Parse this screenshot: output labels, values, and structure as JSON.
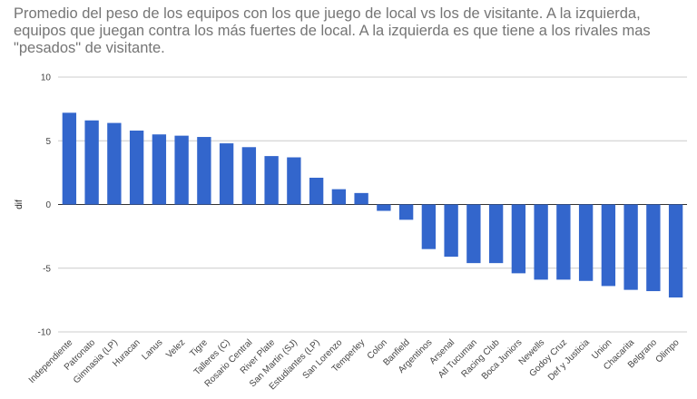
{
  "chart_data": {
    "type": "bar",
    "title": "Promedio del peso de los equipos con los que juego de local vs los de visitante. A la izquierda,\nequipos que juegan contra los más fuertes de local. A la izquierda es que tiene a los rivales mas\n\"pesados\" de visitante.",
    "xlabel": "",
    "ylabel": "dif",
    "ylim": [
      -10,
      10
    ],
    "yticks": [
      "10",
      "5",
      "0",
      "-5",
      "-10"
    ],
    "ytick_values": [
      10,
      5,
      0,
      -5,
      -10
    ],
    "grid": true,
    "bar_color": "#3366cc",
    "categories": [
      "Independiente",
      "Patronato",
      "Gimnasia (LP)",
      "Huracan",
      "Lanus",
      "Velez",
      "Tigre",
      "Talleres (C)",
      "Rosario Central",
      "River Plate",
      "San Martin (SJ)",
      "Estudiantes (LP)",
      "San Lorenzo",
      "Temperley",
      "Colon",
      "Banfield",
      "Argentinos",
      "Arsenal",
      "Atl Tucuman",
      "Racing Club",
      "Boca Juniors",
      "Newells",
      "Godoy Cruz",
      "Def y Justicia",
      "Union",
      "Chacarita",
      "Belgrano",
      "Olimpo"
    ],
    "values": [
      7.2,
      6.6,
      6.4,
      5.8,
      5.5,
      5.4,
      5.3,
      4.8,
      4.5,
      3.8,
      3.7,
      2.1,
      1.2,
      0.9,
      -0.5,
      -1.2,
      -3.5,
      -4.1,
      -4.6,
      -4.6,
      -5.4,
      -5.9,
      -5.9,
      -6.0,
      -6.4,
      -6.7,
      -6.8,
      -7.3
    ]
  }
}
